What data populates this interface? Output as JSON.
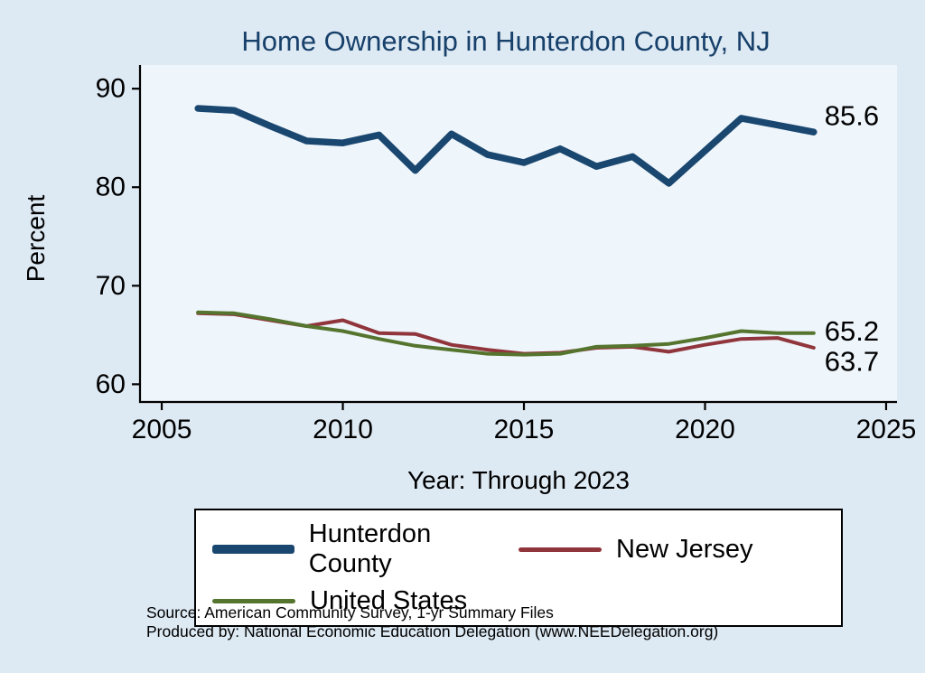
{
  "chart": {
    "title": "Home Ownership in Hunterdon County, NJ",
    "ylabel": "Percent",
    "xlabel": "Year: Through 2023",
    "source_line1": "Source: American Community Survey, 1-yr Summary Files",
    "source_line2": "Produced by: National Economic Education Delegation (www.NEEDelegation.org)"
  },
  "chart_data": {
    "type": "line",
    "title": "Home Ownership in Hunterdon County, NJ",
    "xlabel": "Year: Through 2023",
    "ylabel": "Percent",
    "x": [
      2006,
      2007,
      2008,
      2009,
      2010,
      2011,
      2012,
      2013,
      2014,
      2015,
      2016,
      2017,
      2018,
      2019,
      2020,
      2021,
      2022,
      2023
    ],
    "series": [
      {
        "name": "Hunterdon County",
        "color": "#1a476f",
        "width": 7.5,
        "end_label": "85.6",
        "label_dy": -18,
        "values": [
          88.0,
          87.8,
          86.2,
          84.7,
          84.5,
          85.3,
          81.7,
          85.4,
          83.3,
          82.5,
          83.9,
          82.1,
          83.1,
          80.4,
          83.7,
          87.0,
          86.3,
          85.6
        ]
      },
      {
        "name": "New Jersey",
        "color": "#90353b",
        "width": 4,
        "end_label": "63.7",
        "label_dy": 15,
        "values": [
          67.2,
          67.1,
          66.5,
          65.9,
          66.5,
          65.2,
          65.1,
          64.0,
          63.5,
          63.1,
          63.2,
          63.7,
          63.8,
          63.3,
          64.0,
          64.6,
          64.7,
          63.7
        ]
      },
      {
        "name": "United States",
        "color": "#55752f",
        "width": 4,
        "end_label": "65.2",
        "label_dy": -2,
        "values": [
          67.3,
          67.2,
          66.6,
          65.9,
          65.4,
          64.6,
          63.9,
          63.5,
          63.1,
          63.0,
          63.1,
          63.8,
          63.9,
          64.1,
          64.7,
          65.4,
          65.2,
          65.2
        ]
      }
    ],
    "x_ticks": [
      2005,
      2010,
      2015,
      2020,
      2025
    ],
    "y_ticks": [
      60,
      70,
      80,
      90
    ],
    "xlim": [
      2004.4,
      2025.3
    ],
    "ylim": [
      58.2,
      92.4
    ],
    "grid": false,
    "legend_position": "bottom"
  }
}
